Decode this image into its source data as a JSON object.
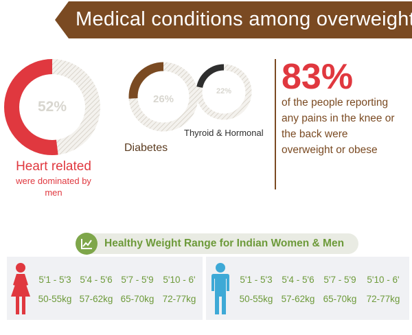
{
  "header": {
    "title": "Medical conditions among overweight"
  },
  "conditions": [
    {
      "percent_label": "52%",
      "fraction": 0.52,
      "color": "#e0383f",
      "name": "Heart related",
      "sub_lines": [
        "were dominated by",
        "men"
      ]
    },
    {
      "percent_label": "26%",
      "fraction": 0.26,
      "color": "#7a4a22",
      "name": "Diabetes"
    },
    {
      "percent_label": "22%",
      "fraction": 0.22,
      "color": "#2e2e2e",
      "name": "Thyroid & Hormonal"
    }
  ],
  "stat": {
    "value": "83%",
    "lines": [
      "of the people reporting",
      "any pains in the knee or",
      "the back were",
      "overweight or obese"
    ]
  },
  "weight_section": {
    "title": "Healthy Weight Range for Indian Women & Men",
    "icon": "line-chart-icon"
  },
  "women": {
    "icon": "female-figure-icon",
    "color": "#e0383f",
    "heights": [
      "5'1 - 5'3",
      "5'4 - 5'6",
      "5'7 - 5'9",
      "5'10 - 6'"
    ],
    "weights": [
      "50-55kg",
      "57-62kg",
      "65-70kg",
      "72-77kg"
    ]
  },
  "men": {
    "icon": "male-figure-icon",
    "color": "#3ea9d6",
    "heights": [
      "5'1 - 5'3",
      "5'4 - 5'6",
      "5'7 - 5'9",
      "5'10 - 6'"
    ],
    "weights": [
      "50-55kg",
      "57-62kg",
      "65-70kg",
      "72-77kg"
    ]
  },
  "colors": {
    "brown": "#7a4a22",
    "red": "#e0383f",
    "green": "#6d9a3a",
    "blue": "#3ea9d6"
  }
}
